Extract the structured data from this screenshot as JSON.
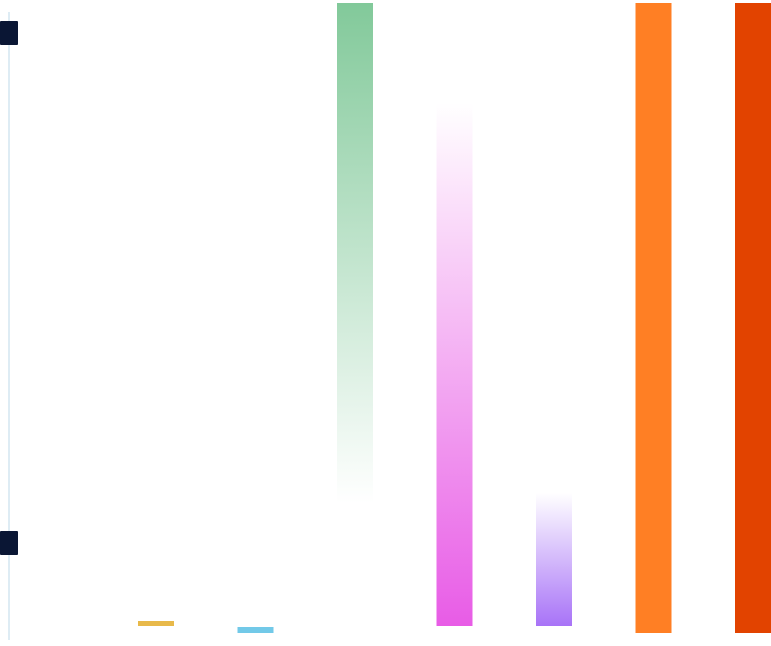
{
  "chart_data": {
    "type": "bar",
    "bars": [
      {
        "color": "#E8B94A",
        "segments": [
          {
            "start": 0.7,
            "end": 1.2
          }
        ]
      },
      {
        "color": "#72C9E8",
        "segments": [
          {
            "start": 0.0,
            "end": 0.6
          }
        ]
      },
      {
        "color": "#82C99A",
        "segments": [
          {
            "start": 13.0,
            "end": 63.0,
            "fade": "down"
          }
        ]
      },
      {
        "color": "#E85CE6",
        "segments": [
          {
            "start": 0.7,
            "end": 53.0,
            "fade": "up"
          }
        ]
      },
      {
        "color": "#A873F7",
        "segments": [
          {
            "start": 0.7,
            "end": 14.0,
            "fade": "up"
          }
        ]
      },
      {
        "color": "#FF7F24",
        "segments": [
          {
            "start": 0.0,
            "end": 63.0
          }
        ]
      },
      {
        "color": "#E24300",
        "segments": [
          {
            "start": 0.0,
            "end": 63.0
          }
        ]
      }
    ],
    "axis": {
      "color": "#D4E6F0",
      "marker_color": "#0A1634",
      "markers": [
        9.0,
        60.0
      ]
    },
    "ylim": [
      0,
      63
    ]
  }
}
